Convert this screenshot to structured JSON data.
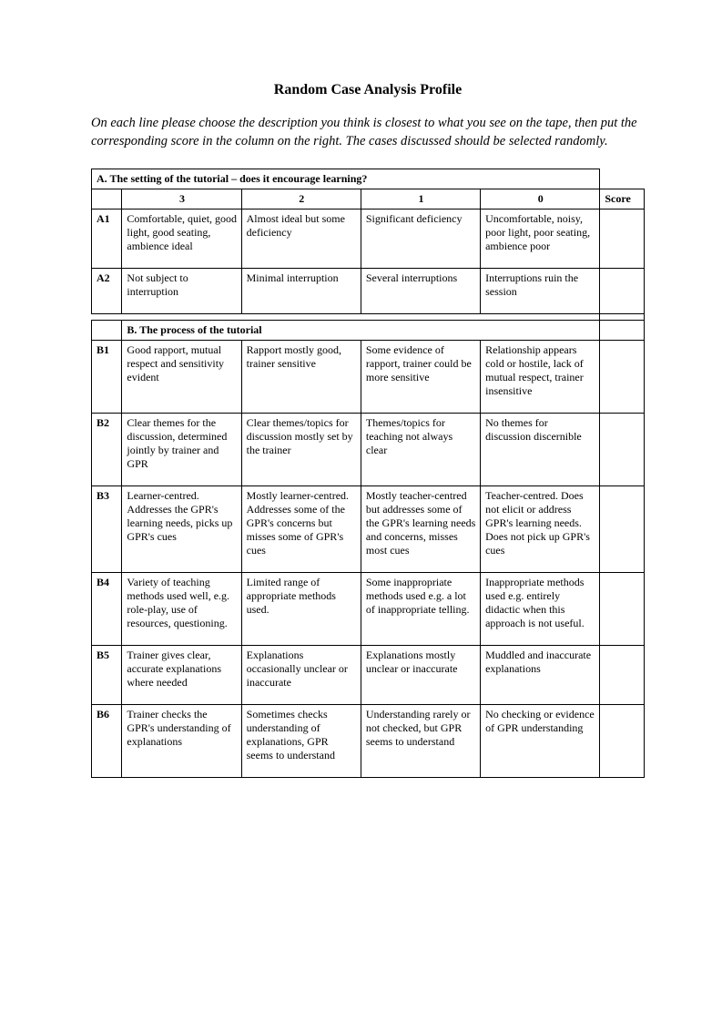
{
  "title": "Random Case Analysis Profile",
  "intro": "On each line please choose the description you think is closest to what you see on the tape, then put the corresponding score in the column on the right. The cases discussed should be selected randomly.",
  "section_a_title": "A. The setting of the tutorial    – does it encourage learning?",
  "section_b_title": "B. The process of the tutorial",
  "score_header": "Score",
  "score_levels": [
    "3",
    "2",
    "1",
    "0"
  ],
  "rows_a": [
    {
      "code": "A1",
      "c3": "Comfortable, quiet, good light, good seating, ambience ideal",
      "c2": "Almost ideal but some deficiency",
      "c1": "Significant deficiency",
      "c0": "Uncomfortable, noisy, poor light, poor seating, ambience poor"
    },
    {
      "code": "A2",
      "c3": "Not subject to interruption",
      "c2": "Minimal interruption",
      "c1": "Several interruptions",
      "c0": "Interruptions ruin the session"
    }
  ],
  "rows_b": [
    {
      "code": "B1",
      "c3": "Good rapport, mutual respect and sensitivity evident",
      "c2": "Rapport mostly good, trainer sensitive",
      "c1": "Some evidence of rapport, trainer could be more sensitive",
      "c0": "Relationship appears cold or hostile, lack of mutual respect, trainer insensitive"
    },
    {
      "code": "B2",
      "c3": "Clear themes for the discussion, determined jointly by trainer and GPR",
      "c2": "Clear themes/topics for discussion mostly  set by the trainer",
      "c1": "Themes/topics for teaching not always clear",
      "c0": "No themes for discussion discernible"
    },
    {
      "code": "B3",
      "c3": "Learner-centred. Addresses the GPR's learning needs, picks up GPR's cues",
      "c2": "Mostly learner-centred. Addresses some of the GPR's concerns but misses some of GPR's cues",
      "c1": "Mostly teacher-centred but addresses some of the GPR's learning needs and concerns, misses most cues",
      "c0": "Teacher-centred. Does not elicit or address GPR's learning needs. Does not pick up GPR's cues"
    },
    {
      "code": "B4",
      "c3": "Variety of teaching methods used well, e.g. role-play, use of resources, questioning.",
      "c2": "Limited range of appropriate methods used.",
      "c1": "Some inappropriate methods used e.g. a lot of inappropriate telling.",
      "c0": "Inappropriate methods used e.g. entirely didactic when this approach is not useful."
    },
    {
      "code": "B5",
      "c3": "Trainer gives clear, accurate explanations where needed",
      "c2": "Explanations occasionally unclear or inaccurate",
      "c1": "Explanations mostly unclear or inaccurate",
      "c0": "Muddled and inaccurate explanations"
    },
    {
      "code": "B6",
      "c3": "Trainer checks the GPR's understanding of explanations",
      "c2": "Sometimes checks understanding of explanations, GPR seems to understand",
      "c1": "Understanding rarely or not checked, but GPR seems to understand",
      "c0": "No checking or evidence of GPR understanding"
    }
  ]
}
